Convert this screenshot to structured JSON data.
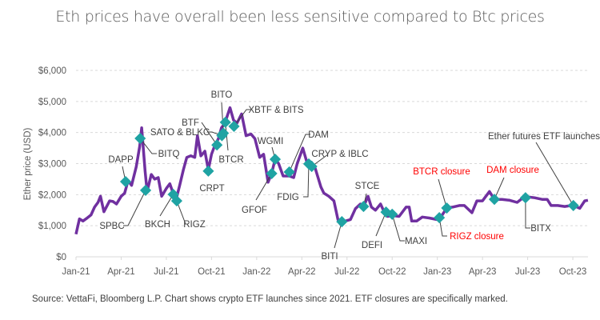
{
  "chart_data": {
    "type": "line",
    "title": "Eth prices have overall been less sensitive compared to Btc prices",
    "ylabel": "Ether price (USD)",
    "xlabel": "",
    "ylim": [
      0,
      6000
    ],
    "yticks": [
      "$0",
      "$1,000",
      "$2,000",
      "$3,000",
      "$4,000",
      "$5,000",
      "$6,000"
    ],
    "ytick_values": [
      0,
      1000,
      2000,
      3000,
      4000,
      5000,
      6000
    ],
    "xticks": [
      "Jan-21",
      "Apr-21",
      "Jul-21",
      "Oct-21",
      "Jan-22",
      "Apr-22",
      "Jul-22",
      "Oct-22",
      "Jan-23",
      "Apr-23",
      "Jul-23",
      "Oct-23"
    ],
    "xtick_dates": [
      "2021-01-01",
      "2021-04-01",
      "2021-07-01",
      "2021-10-01",
      "2022-01-01",
      "2022-04-01",
      "2022-07-01",
      "2022-10-01",
      "2023-01-01",
      "2023-04-01",
      "2023-07-01",
      "2023-10-01"
    ],
    "grid": "horizontal dashed",
    "colors": {
      "line": "#7030a0",
      "marker": "#1fa3a3",
      "label": "#404040",
      "closure_label": "#ff0000"
    },
    "series": [
      {
        "points": [
          [
            "2021-01-01",
            730
          ],
          [
            "2021-01-08",
            1220
          ],
          [
            "2021-01-15",
            1150
          ],
          [
            "2021-01-22",
            1230
          ],
          [
            "2021-02-01",
            1350
          ],
          [
            "2021-02-08",
            1600
          ],
          [
            "2021-02-15",
            1750
          ],
          [
            "2021-02-20",
            1950
          ],
          [
            "2021-02-27",
            1450
          ],
          [
            "2021-03-08",
            1800
          ],
          [
            "2021-03-15",
            1780
          ],
          [
            "2021-03-22",
            1700
          ],
          [
            "2021-04-01",
            1950
          ],
          [
            "2021-04-08",
            2050
          ],
          [
            "2021-04-15",
            2450
          ],
          [
            "2021-04-22",
            2300
          ],
          [
            "2021-05-01",
            2900
          ],
          [
            "2021-05-08",
            3550
          ],
          [
            "2021-05-12",
            4150
          ],
          [
            "2021-05-19",
            2750
          ],
          [
            "2021-05-23",
            2100
          ],
          [
            "2021-06-01",
            2650
          ],
          [
            "2021-06-08",
            2500
          ],
          [
            "2021-06-15",
            2550
          ],
          [
            "2021-06-22",
            1950
          ],
          [
            "2021-07-01",
            2200
          ],
          [
            "2021-07-08",
            2350
          ],
          [
            "2021-07-20",
            1800
          ],
          [
            "2021-07-28",
            2300
          ],
          [
            "2021-08-05",
            2800
          ],
          [
            "2021-08-12",
            3200
          ],
          [
            "2021-08-20",
            3250
          ],
          [
            "2021-08-28",
            3200
          ],
          [
            "2021-09-03",
            3900
          ],
          [
            "2021-09-10",
            3250
          ],
          [
            "2021-09-18",
            3400
          ],
          [
            "2021-09-25",
            2800
          ],
          [
            "2021-10-01",
            3300
          ],
          [
            "2021-10-08",
            3600
          ],
          [
            "2021-10-15",
            3800
          ],
          [
            "2021-10-21",
            4150
          ],
          [
            "2021-10-28",
            4300
          ],
          [
            "2021-11-08",
            4800
          ],
          [
            "2021-11-15",
            4400
          ],
          [
            "2021-11-22",
            4300
          ],
          [
            "2021-12-01",
            4600
          ],
          [
            "2021-12-10",
            3900
          ],
          [
            "2021-12-20",
            3950
          ],
          [
            "2021-12-28",
            3800
          ],
          [
            "2022-01-07",
            3200
          ],
          [
            "2022-01-15",
            3300
          ],
          [
            "2022-01-24",
            2400
          ],
          [
            "2022-02-01",
            2700
          ],
          [
            "2022-02-08",
            3150
          ],
          [
            "2022-02-15",
            3000
          ],
          [
            "2022-02-24",
            2600
          ],
          [
            "2022-03-06",
            2600
          ],
          [
            "2022-03-15",
            2550
          ],
          [
            "2022-03-22",
            3000
          ],
          [
            "2022-04-03",
            3500
          ],
          [
            "2022-04-12",
            3000
          ],
          [
            "2022-04-20",
            3050
          ],
          [
            "2022-04-28",
            2850
          ],
          [
            "2022-05-09",
            2250
          ],
          [
            "2022-05-15",
            2050
          ],
          [
            "2022-05-25",
            1950
          ],
          [
            "2022-06-05",
            1800
          ],
          [
            "2022-06-13",
            1200
          ],
          [
            "2022-06-18",
            1050
          ],
          [
            "2022-06-28",
            1150
          ],
          [
            "2022-07-08",
            1200
          ],
          [
            "2022-07-18",
            1550
          ],
          [
            "2022-07-28",
            1700
          ],
          [
            "2022-08-05",
            1650
          ],
          [
            "2022-08-13",
            1950
          ],
          [
            "2022-08-20",
            1600
          ],
          [
            "2022-08-28",
            1500
          ],
          [
            "2022-09-08",
            1700
          ],
          [
            "2022-09-15",
            1450
          ],
          [
            "2022-09-22",
            1300
          ],
          [
            "2022-10-01",
            1330
          ],
          [
            "2022-10-15",
            1300
          ],
          [
            "2022-10-29",
            1600
          ],
          [
            "2022-11-05",
            1600
          ],
          [
            "2022-11-10",
            1150
          ],
          [
            "2022-11-20",
            1150
          ],
          [
            "2022-12-01",
            1280
          ],
          [
            "2022-12-15",
            1250
          ],
          [
            "2022-12-30",
            1200
          ],
          [
            "2023-01-10",
            1330
          ],
          [
            "2023-01-20",
            1570
          ],
          [
            "2023-02-01",
            1600
          ],
          [
            "2023-02-15",
            1650
          ],
          [
            "2023-02-25",
            1650
          ],
          [
            "2023-03-10",
            1420
          ],
          [
            "2023-03-20",
            1800
          ],
          [
            "2023-04-01",
            1800
          ],
          [
            "2023-04-15",
            2100
          ],
          [
            "2023-04-25",
            1850
          ],
          [
            "2023-05-10",
            1850
          ],
          [
            "2023-05-25",
            1820
          ],
          [
            "2023-06-10",
            1750
          ],
          [
            "2023-06-22",
            1900
          ],
          [
            "2023-07-01",
            1930
          ],
          [
            "2023-07-15",
            1900
          ],
          [
            "2023-07-30",
            1850
          ],
          [
            "2023-08-10",
            1850
          ],
          [
            "2023-08-18",
            1650
          ],
          [
            "2023-09-01",
            1650
          ],
          [
            "2023-09-15",
            1620
          ],
          [
            "2023-09-28",
            1650
          ],
          [
            "2023-10-05",
            1630
          ],
          [
            "2023-10-15",
            1560
          ],
          [
            "2023-10-25",
            1800
          ],
          [
            "2023-11-01",
            1820
          ]
        ]
      }
    ],
    "annotations": [
      {
        "label": "DAPP",
        "date": "2021-04-10",
        "price": 2420,
        "closure": false
      },
      {
        "label": "BITQ",
        "date": "2021-05-09",
        "price": 3810,
        "closure": false
      },
      {
        "label": "SPBC",
        "date": "2021-05-20",
        "price": 2140,
        "closure": false
      },
      {
        "label": "BKCH",
        "date": "2021-07-15",
        "price": 2010,
        "closure": false
      },
      {
        "label": "RIGZ",
        "date": "2021-07-22",
        "price": 1800,
        "closure": false
      },
      {
        "label": "CRPT",
        "date": "2021-09-25",
        "price": 2760,
        "closure": false
      },
      {
        "label": "BTF",
        "date": "2021-10-12",
        "price": 3600,
        "closure": false
      },
      {
        "label": "SATO & BLKC",
        "date": "2021-10-22",
        "price": 3900,
        "closure": false
      },
      {
        "label": "BITO",
        "date": "2021-10-25",
        "price": 3980,
        "closure": false
      },
      {
        "label": "BTCR",
        "date": "2021-10-29",
        "price": 4330,
        "closure": false
      },
      {
        "label": "XBTF & BITS",
        "date": "2021-11-16",
        "price": 4200,
        "closure": false
      },
      {
        "label": "GFOF",
        "date": "2022-02-01",
        "price": 2680,
        "closure": false
      },
      {
        "label": "WGMI",
        "date": "2022-02-08",
        "price": 3140,
        "closure": false
      },
      {
        "label": "DAM",
        "date": "2022-03-06",
        "price": 2730,
        "closure": false
      },
      {
        "label": "FDIG",
        "date": "2022-04-15",
        "price": 2990,
        "closure": false
      },
      {
        "label": "CRYP & IBLC",
        "date": "2022-04-21",
        "price": 2910,
        "closure": false
      },
      {
        "label": "BITI",
        "date": "2022-06-21",
        "price": 1130,
        "closure": false
      },
      {
        "label": "STCE",
        "date": "2022-08-04",
        "price": 1620,
        "closure": false
      },
      {
        "label": "DEFI",
        "date": "2022-09-19",
        "price": 1440,
        "closure": false
      },
      {
        "label": "MAXI",
        "date": "2022-10-01",
        "price": 1370,
        "closure": false
      },
      {
        "label": "RIGZ closure",
        "date": "2023-01-05",
        "price": 1260,
        "closure": true
      },
      {
        "label": "BTCR closure",
        "date": "2023-01-20",
        "price": 1570,
        "closure": true
      },
      {
        "label": "DAM closure",
        "date": "2023-04-25",
        "price": 1850,
        "closure": true
      },
      {
        "label": "BITX",
        "date": "2023-06-27",
        "price": 1900,
        "closure": false
      },
      {
        "label": "Ether futures ETF launches",
        "date": "2023-10-02",
        "price": 1650,
        "closure": false
      }
    ]
  },
  "source": "Source: VettaFi, Bloomberg L.P. Chart shows crypto ETF launches since 2021. ETF closures are specifically marked."
}
